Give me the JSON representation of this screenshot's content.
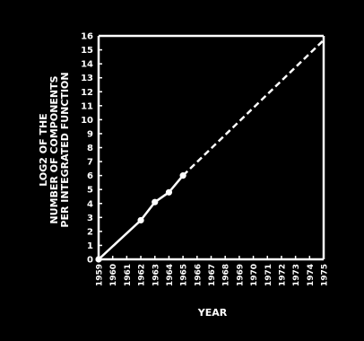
{
  "chart_data": {
    "type": "line",
    "xlabel": "YEAR",
    "ylabel_lines": [
      "LOG2 OF THE",
      "NUMBER OF COMPONENTS",
      "PER INTEGRATED FUNCTION"
    ],
    "x_ticks": [
      "1959",
      "1960",
      "1961",
      "1962",
      "1963",
      "1964",
      "1965",
      "1966",
      "1967",
      "1968",
      "1969",
      "1970",
      "1971",
      "1972",
      "1973",
      "1974",
      "1975"
    ],
    "y_ticks": [
      "0",
      "1",
      "2",
      "3",
      "4",
      "5",
      "6",
      "7",
      "8",
      "9",
      "10",
      "11",
      "12",
      "13",
      "14",
      "15",
      "16"
    ],
    "xlim": [
      1959,
      1975
    ],
    "ylim": [
      0,
      16
    ],
    "grid": false,
    "colors": {
      "background": "#000000",
      "foreground": "#ffffff"
    },
    "series": [
      {
        "style": "solid",
        "points": [
          [
            1959,
            0
          ],
          [
            1962,
            2.8
          ],
          [
            1963,
            4.1
          ],
          [
            1964,
            4.8
          ],
          [
            1965,
            6
          ]
        ]
      },
      {
        "style": "dashed",
        "points": [
          [
            1965,
            6
          ],
          [
            1975,
            15.7
          ]
        ]
      }
    ],
    "markers": [
      [
        1959,
        0
      ],
      [
        1962,
        2.8
      ],
      [
        1963,
        4.1
      ],
      [
        1964,
        4.8
      ],
      [
        1965,
        6
      ]
    ]
  }
}
